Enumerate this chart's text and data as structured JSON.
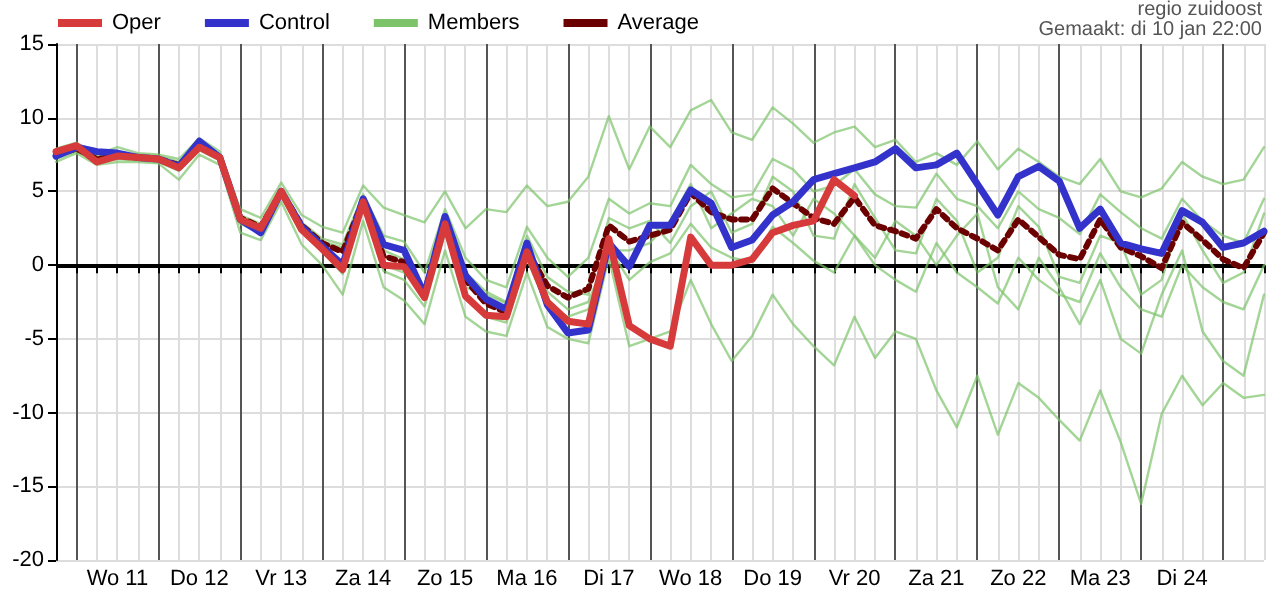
{
  "chart_data": {
    "type": "line",
    "annotations": [
      "regio zuidoost",
      "Gemaakt: di 10 jan 22:00"
    ],
    "categories": [
      null,
      null,
      null,
      "Wo 11",
      null,
      null,
      null,
      "Do 12",
      null,
      null,
      null,
      "Vr 13",
      null,
      null,
      null,
      "Za 14",
      null,
      null,
      null,
      "Zo 15",
      null,
      null,
      null,
      "Ma 16",
      null,
      null,
      null,
      "Di 17",
      null,
      null,
      null,
      "Wo 18",
      null,
      null,
      null,
      "Do 19",
      null,
      null,
      null,
      "Vr 20",
      null,
      null,
      null,
      "Za 21",
      null,
      null,
      null,
      "Zo 22",
      null,
      null,
      null,
      "Ma 23",
      null,
      null,
      null,
      "Di 24",
      null,
      null,
      null,
      null
    ],
    "ylim": [
      -20,
      15
    ],
    "yticks": [
      -20,
      -15,
      -10,
      -5,
      0,
      5,
      10,
      15
    ],
    "grid": true,
    "legend": "top left",
    "marker": "none",
    "ref_lines": [
      {
        "axis": "y",
        "value": 0,
        "color": "#000000"
      }
    ],
    "series": [
      {
        "name": "Oper",
        "color": "#d63a3a",
        "line_style": "solid",
        "values": [
          7.7,
          8.1,
          7.0,
          7.4,
          7.3,
          7.2,
          6.6,
          8.0,
          7.3,
          3.1,
          2.5,
          5.0,
          2.4,
          1.1,
          -0.3,
          4.3,
          0.0,
          -0.1,
          -2.2,
          2.8,
          -2.1,
          -3.4,
          -3.5,
          0.9,
          -2.5,
          -3.8,
          -4.0,
          1.8,
          -4.1,
          -5.0,
          -5.5,
          1.9,
          0.0,
          0.0,
          0.4,
          2.2,
          2.7,
          3.0,
          5.8,
          4.7,
          null,
          null,
          null,
          null,
          null,
          null,
          null,
          null,
          null,
          null,
          null,
          null,
          null,
          null,
          null,
          null,
          null,
          null,
          null,
          null
        ]
      },
      {
        "name": "Control",
        "color": "#3333cc",
        "line_style": "solid",
        "values": [
          7.4,
          8.0,
          7.7,
          7.6,
          7.3,
          7.2,
          6.7,
          8.4,
          7.3,
          3.1,
          2.2,
          5.0,
          2.6,
          1.3,
          0.0,
          4.5,
          1.4,
          1.0,
          -2.0,
          3.3,
          -0.7,
          -2.3,
          -3.0,
          1.5,
          -2.7,
          -4.6,
          -4.4,
          1.5,
          -0.1,
          2.7,
          2.7,
          5.1,
          4.2,
          1.2,
          1.7,
          3.4,
          4.3,
          5.8,
          6.2,
          6.6,
          7.0,
          7.9,
          6.6,
          6.8,
          7.6,
          5.5,
          3.4,
          6.0,
          6.7,
          5.7,
          2.5,
          3.8,
          1.5,
          1.1,
          0.8,
          3.7,
          2.9,
          1.2,
          1.5,
          2.3
        ]
      },
      {
        "name": "Members",
        "color": "#7cc36a",
        "line_style": "solid",
        "values": [
          7.9,
          8.3,
          7.5,
          8.0,
          7.6,
          7.5,
          7.2,
          8.6,
          7.7,
          3.8,
          3.2,
          5.6,
          3.4,
          2.6,
          2.2,
          5.4,
          3.9,
          3.4,
          2.9,
          5.0,
          2.5,
          3.8,
          3.6,
          5.4,
          4.0,
          4.3,
          6.0,
          10.1,
          6.5,
          9.4,
          8.0,
          10.5,
          11.2,
          9.0,
          8.5,
          10.7,
          9.6,
          8.3,
          9.0,
          9.4,
          8.0,
          8.5,
          7.0,
          7.6,
          6.8,
          8.4,
          6.5,
          7.9,
          7.0,
          6.0,
          5.5,
          7.2,
          5.0,
          4.6,
          5.2,
          7.0,
          6.0,
          5.5,
          5.8,
          8.0
        ]
      },
      {
        "name": "Average",
        "color": "#6b0000",
        "line_style": "dotted",
        "values": [
          7.5,
          7.9,
          7.2,
          7.4,
          7.3,
          7.2,
          6.8,
          8.1,
          7.3,
          3.2,
          2.6,
          5.0,
          2.7,
          1.5,
          0.9,
          4.4,
          0.6,
          0.2,
          -1.8,
          2.8,
          -1.0,
          -2.6,
          -3.2,
          1.0,
          -1.4,
          -2.2,
          -1.6,
          2.7,
          1.6,
          2.0,
          2.4,
          4.9,
          3.6,
          3.1,
          3.1,
          5.2,
          4.2,
          3.2,
          2.8,
          4.6,
          2.7,
          2.3,
          1.8,
          3.8,
          2.5,
          1.8,
          1.0,
          3.1,
          1.9,
          0.7,
          0.4,
          3.1,
          1.2,
          0.6,
          -0.2,
          2.9,
          1.7,
          0.4,
          -0.2,
          2.2
        ]
      },
      {
        "color": "#7cc36a",
        "line_style": "solid",
        "values": [
          7.0,
          7.6,
          6.8,
          7.0,
          7.0,
          6.9,
          5.8,
          7.5,
          6.8,
          2.2,
          1.7,
          4.3,
          1.4,
          0.0,
          -2.0,
          3.0,
          -1.5,
          -2.4,
          -4.0,
          1.0,
          -3.5,
          -4.5,
          -4.8,
          -0.5,
          -4.2,
          -5.0,
          -5.3,
          0.5,
          -5.5,
          -5.0,
          -4.5,
          -1.0,
          -4.0,
          -6.5,
          -4.8,
          -2.0,
          -4.0,
          -5.5,
          -6.8,
          -3.5,
          -6.3,
          -4.5,
          -5.0,
          -8.5,
          -11.0,
          -7.5,
          -11.5,
          -8.0,
          -9.0,
          -10.5,
          -11.9,
          -8.5,
          -12.0,
          -16.2,
          -10.1,
          -7.5,
          -9.5,
          -8.0,
          -9.0,
          -8.8
        ]
      },
      {
        "color": "#7cc36a",
        "line_style": "solid",
        "values": [
          7.6,
          8.1,
          7.4,
          7.7,
          7.4,
          7.3,
          6.9,
          8.2,
          7.5,
          3.4,
          2.8,
          5.2,
          2.9,
          1.8,
          1.4,
          4.8,
          2.0,
          1.6,
          -0.5,
          3.8,
          0.5,
          -1.0,
          -1.5,
          2.6,
          0.5,
          -0.8,
          0.5,
          4.5,
          3.5,
          4.2,
          4.0,
          6.8,
          5.5,
          4.6,
          4.8,
          7.2,
          6.5,
          5.0,
          5.4,
          6.5,
          4.8,
          4.0,
          3.9,
          6.2,
          4.5,
          4.0,
          2.5,
          5.0,
          3.8,
          3.2,
          2.1,
          4.8,
          3.6,
          2.5,
          1.8,
          4.5,
          3.0,
          2.0,
          1.5,
          4.5
        ]
      },
      {
        "color": "#7cc36a",
        "line_style": "solid",
        "values": [
          7.3,
          7.8,
          7.0,
          7.2,
          7.1,
          7.0,
          6.4,
          7.8,
          7.1,
          2.8,
          2.2,
          4.7,
          2.2,
          1.0,
          -0.6,
          4.0,
          -0.4,
          -1.0,
          -2.8,
          2.2,
          -2.2,
          -3.5,
          -3.9,
          0.4,
          -2.8,
          -3.5,
          -3.0,
          1.2,
          -1.0,
          0.2,
          0.8,
          2.8,
          1.2,
          0.5,
          0.2,
          2.6,
          1.5,
          0.3,
          -0.5,
          2.0,
          0.0,
          -1.0,
          -1.8,
          1.5,
          -0.5,
          -1.5,
          -2.6,
          0.5,
          -1.0,
          -2.0,
          -2.5,
          0.8,
          -1.5,
          -3.0,
          -3.5,
          0.0,
          -1.5,
          -2.5,
          -3.0,
          0.0
        ]
      },
      {
        "color": "#7cc36a",
        "line_style": "solid",
        "values": [
          7.8,
          8.2,
          7.3,
          7.5,
          7.5,
          7.4,
          7.0,
          8.3,
          7.4,
          3.0,
          2.4,
          5.1,
          2.5,
          1.2,
          0.2,
          4.6,
          1.0,
          0.4,
          -1.5,
          3.1,
          -1.5,
          -2.0,
          -2.6,
          2.0,
          -0.8,
          -1.8,
          -2.0,
          3.2,
          2.5,
          3.0,
          1.5,
          4.0,
          5.0,
          2.2,
          2.8,
          6.0,
          5.0,
          2.0,
          1.8,
          5.5,
          3.2,
          1.0,
          0.8,
          4.5,
          3.0,
          -0.5,
          0.5,
          4.0,
          2.6,
          -0.8,
          -1.2,
          2.0,
          1.5,
          -2.0,
          -1.0,
          3.5,
          1.0,
          -1.2,
          -0.5,
          3.5
        ]
      },
      {
        "color": "#7cc36a",
        "line_style": "solid",
        "values": [
          7.2,
          7.7,
          7.1,
          7.3,
          7.2,
          7.1,
          6.5,
          7.9,
          7.2,
          3.3,
          2.7,
          4.9,
          2.8,
          1.6,
          1.2,
          4.2,
          0.0,
          -0.5,
          -2.0,
          2.5,
          -0.5,
          -1.8,
          -2.5,
          1.5,
          -1.8,
          -3.0,
          -2.5,
          1.0,
          1.0,
          1.5,
          3.0,
          5.5,
          2.5,
          3.5,
          4.5,
          4.0,
          2.0,
          4.5,
          3.5,
          2.0,
          0.5,
          3.0,
          2.0,
          0.0,
          2.0,
          3.5,
          -1.5,
          -3.0,
          0.5,
          -1.5,
          -4.0,
          -1.0,
          -5.0,
          -6.0,
          -2.0,
          1.0,
          -4.5,
          -6.5,
          -7.5,
          -2.0
        ]
      }
    ]
  }
}
